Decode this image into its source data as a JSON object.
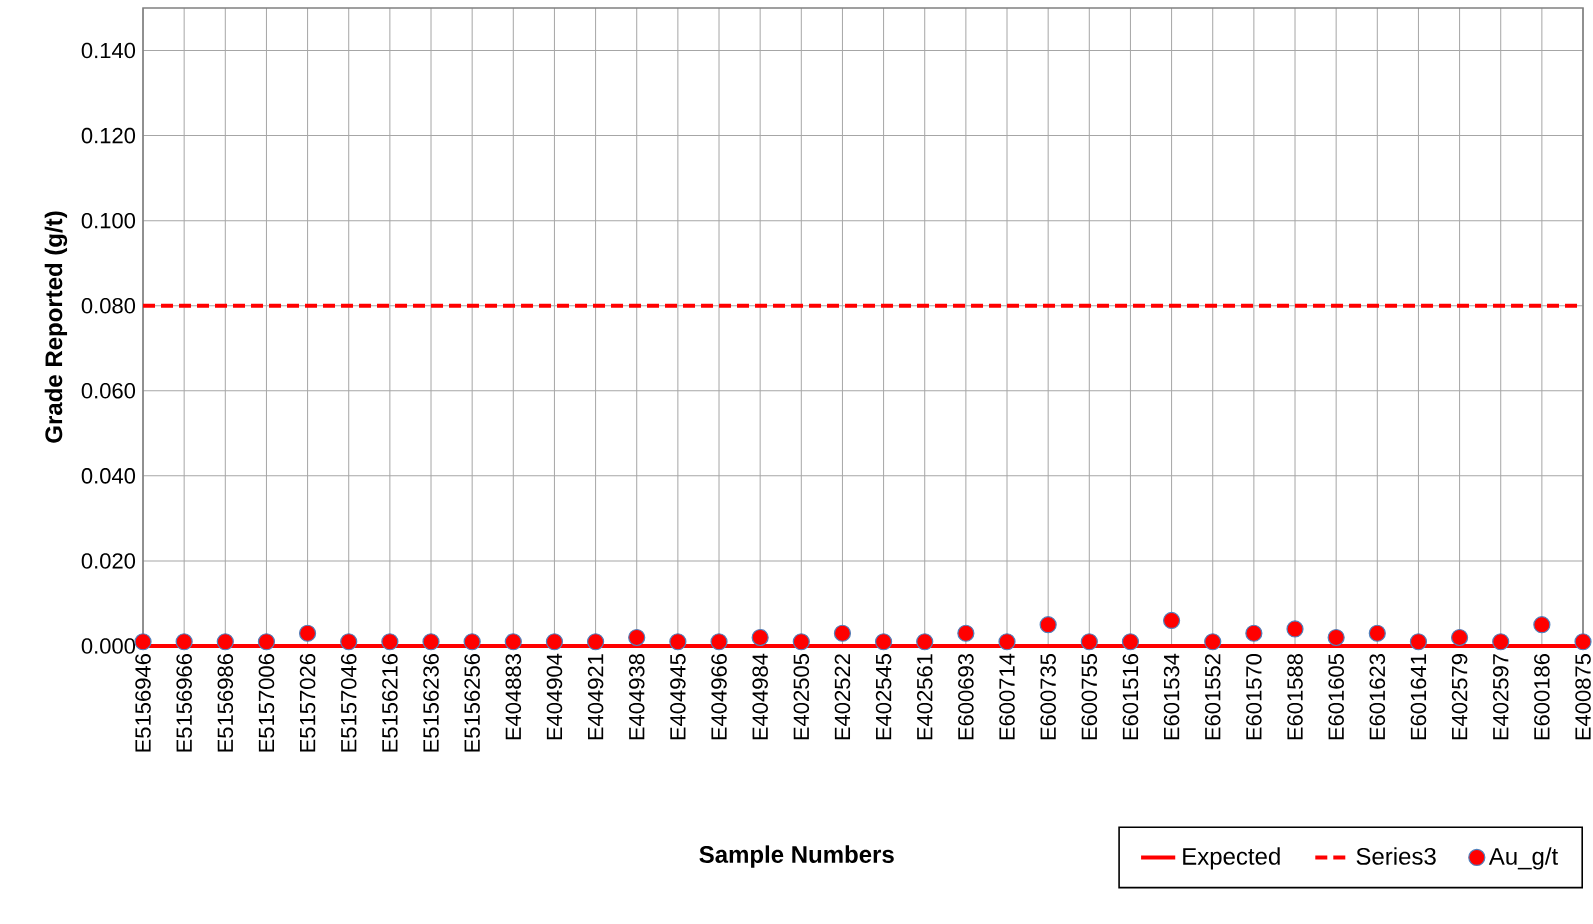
{
  "chart_data": {
    "type": "line",
    "xlabel": "Sample Numbers",
    "ylabel": "Grade Reported (g/t)",
    "categories": [
      "E5156946",
      "E5156966",
      "E5156986",
      "E5157006",
      "E5157026",
      "E5157046",
      "E5156216",
      "E5156236",
      "E5156256",
      "E404883",
      "E404904",
      "E404921",
      "E404938",
      "E404945",
      "E404966",
      "E404984",
      "E402505",
      "E402522",
      "E402545",
      "E402561",
      "E600693",
      "E600714",
      "E600735",
      "E600755",
      "E601516",
      "E601534",
      "E601552",
      "E601570",
      "E601588",
      "E601605",
      "E601623",
      "E601641",
      "E402579",
      "E402597",
      "E600186",
      "E400875"
    ],
    "series": [
      {
        "name": "Expected",
        "color": "#ff0000",
        "line_style": "solid",
        "marker": "none",
        "values": [
          0,
          0,
          0,
          0,
          0,
          0,
          0,
          0,
          0,
          0,
          0,
          0,
          0,
          0,
          0,
          0,
          0,
          0,
          0,
          0,
          0,
          0,
          0,
          0,
          0,
          0,
          0,
          0,
          0,
          0,
          0,
          0,
          0,
          0,
          0,
          0
        ]
      },
      {
        "name": "Series3",
        "color": "#ff0000",
        "line_style": "dashed",
        "marker": "none",
        "values": [
          0.08,
          0.08,
          0.08,
          0.08,
          0.08,
          0.08,
          0.08,
          0.08,
          0.08,
          0.08,
          0.08,
          0.08,
          0.08,
          0.08,
          0.08,
          0.08,
          0.08,
          0.08,
          0.08,
          0.08,
          0.08,
          0.08,
          0.08,
          0.08,
          0.08,
          0.08,
          0.08,
          0.08,
          0.08,
          0.08,
          0.08,
          0.08,
          0.08,
          0.08,
          0.08,
          0.08
        ]
      },
      {
        "name": "Au_g/t",
        "type": "scatter",
        "color": "#ff0000",
        "marker": "circle",
        "values": [
          0.001,
          0.001,
          0.001,
          0.001,
          0.003,
          0.001,
          0.001,
          0.001,
          0.001,
          0.001,
          0.001,
          0.001,
          0.002,
          0.001,
          0.001,
          0.002,
          0.001,
          0.003,
          0.001,
          0.001,
          0.003,
          0.001,
          0.005,
          0.001,
          0.001,
          0.006,
          0.001,
          0.003,
          0.004,
          0.002,
          0.003,
          0.001,
          0.002,
          0.001,
          0.005,
          0.001
        ]
      }
    ],
    "ylim": [
      0,
      0.15
    ],
    "yticks": [
      {
        "value": 0,
        "label": "0.000"
      },
      {
        "value": 0.02,
        "label": "0.020"
      },
      {
        "value": 0.04,
        "label": "0.040"
      },
      {
        "value": 0.06,
        "label": "0.060"
      },
      {
        "value": 0.08,
        "label": "0.080"
      },
      {
        "value": 0.1,
        "label": "0.100"
      },
      {
        "value": 0.12,
        "label": "0.120"
      },
      {
        "value": 0.14,
        "label": "0.140"
      }
    ],
    "grid": true,
    "legend": "bottom right"
  }
}
